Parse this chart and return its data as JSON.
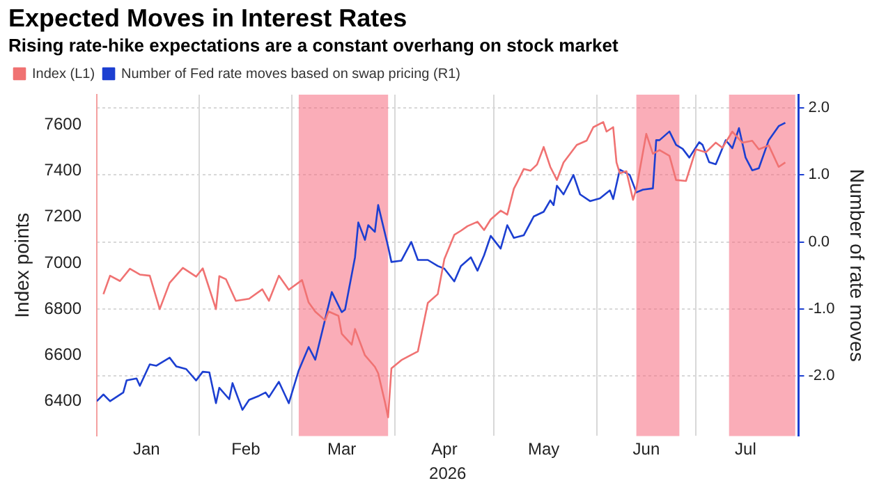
{
  "chart_data": {
    "type": "line",
    "title": "Expected Moves in Interest Rates",
    "subtitle": "Rising rate-hike expectations are a constant overhang on stock market",
    "xlabel": "2026",
    "ylabel": "Index points",
    "y2label": "Number of rate moves",
    "xlim": [
      "2026-01-01",
      "2026-08-01"
    ],
    "xticks": [
      {
        "value": "2026-01-01",
        "label": null
      },
      {
        "value": "2026-01-16",
        "label": "Jan"
      },
      {
        "value": "2026-02-01",
        "label": null
      },
      {
        "value": "2026-02-15",
        "label": "Feb"
      },
      {
        "value": "2026-03-01",
        "label": null
      },
      {
        "value": "2026-03-16",
        "label": "Mar"
      },
      {
        "value": "2026-04-01",
        "label": null
      },
      {
        "value": "2026-04-16",
        "label": "Apr"
      },
      {
        "value": "2026-05-01",
        "label": null
      },
      {
        "value": "2026-05-16",
        "label": "May"
      },
      {
        "value": "2026-06-01",
        "label": null
      },
      {
        "value": "2026-06-16",
        "label": "Jun"
      },
      {
        "value": "2026-07-01",
        "label": null
      },
      {
        "value": "2026-07-16",
        "label": "Jul"
      },
      {
        "value": "2026-08-01",
        "label": null
      }
    ],
    "ylim": [
      6250,
      7730
    ],
    "yticks": [
      6400,
      6600,
      6800,
      7000,
      7200,
      7400,
      7600
    ],
    "y2lim": [
      -2.9,
      2.2
    ],
    "y2ticks": [
      {
        "value": -2,
        "label": "-2.0"
      },
      {
        "value": -1,
        "label": "-1.0"
      },
      {
        "value": 0,
        "label": "0.0"
      },
      {
        "value": 1,
        "label": "1.0"
      },
      {
        "value": 2,
        "label": "2.0"
      }
    ],
    "grid": true,
    "legend": "top left",
    "bands": [
      {
        "axis": "x",
        "from": "2026-03-03",
        "to": "2026-03-30",
        "color": "#f5697e"
      },
      {
        "axis": "x",
        "from": "2026-06-13",
        "to": "2026-06-26",
        "color": "#f5697e"
      },
      {
        "axis": "x",
        "from": "2026-07-11",
        "to": "2026-07-31",
        "color": "#f5697e"
      }
    ],
    "series": [
      {
        "name": "Index (L1)",
        "color": "#f07272",
        "x": [
          "2026-01-03",
          "2026-01-05",
          "2026-01-08",
          "2026-01-11",
          "2026-01-14",
          "2026-01-17",
          "2026-01-20",
          "2026-01-23",
          "2026-01-27",
          "2026-01-31",
          "2026-02-02",
          "2026-02-06",
          "2026-02-07",
          "2026-02-09",
          "2026-02-12",
          "2026-02-16",
          "2026-02-20",
          "2026-02-22",
          "2026-02-25",
          "2026-02-28",
          "2026-03-04",
          "2026-03-06",
          "2026-03-08",
          "2026-03-11",
          "2026-03-12",
          "2026-03-15",
          "2026-03-16",
          "2026-03-19",
          "2026-03-20",
          "2026-03-23",
          "2026-03-26",
          "2026-03-27",
          "2026-03-29",
          "2026-03-30",
          "2026-03-31",
          "2026-04-03",
          "2026-04-08",
          "2026-04-11",
          "2026-04-14",
          "2026-04-16",
          "2026-04-19",
          "2026-04-21",
          "2026-04-23",
          "2026-04-26",
          "2026-04-28",
          "2026-04-30",
          "2026-05-03",
          "2026-05-05",
          "2026-05-07",
          "2026-05-08",
          "2026-05-10",
          "2026-05-12",
          "2026-05-14",
          "2026-05-16",
          "2026-05-18",
          "2026-05-20",
          "2026-05-22",
          "2026-05-26",
          "2026-05-29",
          "2026-05-31",
          "2026-06-03",
          "2026-06-04",
          "2026-06-06",
          "2026-06-07",
          "2026-06-08",
          "2026-06-10",
          "2026-06-12",
          "2026-06-13",
          "2026-06-16",
          "2026-06-18",
          "2026-06-20",
          "2026-06-23",
          "2026-06-25",
          "2026-06-28",
          "2026-07-01",
          "2026-07-04",
          "2026-07-07",
          "2026-07-09",
          "2026-07-12",
          "2026-07-15",
          "2026-07-18",
          "2026-07-20",
          "2026-07-23",
          "2026-07-26",
          "2026-07-28"
        ],
        "values": [
          6865,
          6945,
          6922,
          6975,
          6950,
          6945,
          6800,
          6914,
          6979,
          6941,
          6977,
          6800,
          6943,
          6930,
          6836,
          6845,
          6886,
          6836,
          6945,
          6884,
          6926,
          6829,
          6789,
          6751,
          6790,
          6771,
          6693,
          6646,
          6714,
          6600,
          6550,
          6522,
          6400,
          6331,
          6543,
          6579,
          6617,
          6827,
          6865,
          7017,
          7122,
          7140,
          7160,
          7179,
          7143,
          7189,
          7227,
          7210,
          7322,
          7350,
          7408,
          7400,
          7427,
          7503,
          7417,
          7360,
          7436,
          7512,
          7531,
          7589,
          7611,
          7570,
          7589,
          7436,
          7389,
          7398,
          7274,
          7322,
          7560,
          7474,
          7490,
          7465,
          7360,
          7356,
          7493,
          7480,
          7522,
          7500,
          7570,
          7522,
          7530,
          7493,
          7510,
          7417,
          7436
        ]
      },
      {
        "name": "Number of Fed rate moves based on swap pricing (R1)",
        "color": "#1c3fd1",
        "axis": "y2",
        "x": [
          "2026-01-01",
          "2026-01-03",
          "2026-01-05",
          "2026-01-09",
          "2026-01-10",
          "2026-01-13",
          "2026-01-14",
          "2026-01-17",
          "2026-01-19",
          "2026-01-23",
          "2026-01-25",
          "2026-01-28",
          "2026-01-31",
          "2026-02-02",
          "2026-02-04",
          "2026-02-06",
          "2026-02-07",
          "2026-02-10",
          "2026-02-11",
          "2026-02-14",
          "2026-02-16",
          "2026-02-19",
          "2026-02-21",
          "2026-02-22",
          "2026-02-25",
          "2026-02-28",
          "2026-03-03",
          "2026-03-06",
          "2026-03-08",
          "2026-03-13",
          "2026-03-16",
          "2026-03-17",
          "2026-03-20",
          "2026-03-21",
          "2026-03-23",
          "2026-03-24",
          "2026-03-26",
          "2026-03-27",
          "2026-03-30",
          "2026-03-31",
          "2026-04-03",
          "2026-04-06",
          "2026-04-08",
          "2026-04-11",
          "2026-04-14",
          "2026-04-16",
          "2026-04-19",
          "2026-04-21",
          "2026-04-24",
          "2026-04-26",
          "2026-04-28",
          "2026-04-30",
          "2026-05-03",
          "2026-05-05",
          "2026-05-07",
          "2026-05-10",
          "2026-05-13",
          "2026-05-16",
          "2026-05-18",
          "2026-05-19",
          "2026-05-20",
          "2026-05-22",
          "2026-05-25",
          "2026-05-27",
          "2026-05-30",
          "2026-06-02",
          "2026-06-05",
          "2026-06-06",
          "2026-06-08",
          "2026-06-11",
          "2026-06-13",
          "2026-06-15",
          "2026-06-18",
          "2026-06-19",
          "2026-06-20",
          "2026-06-23",
          "2026-06-25",
          "2026-06-27",
          "2026-06-29",
          "2026-07-02",
          "2026-07-03",
          "2026-07-05",
          "2026-07-07",
          "2026-07-10",
          "2026-07-12",
          "2026-07-14",
          "2026-07-16",
          "2026-07-18",
          "2026-07-20",
          "2026-07-23",
          "2026-07-26",
          "2026-07-28"
        ],
        "values": [
          -2.38,
          -2.28,
          -2.38,
          -2.25,
          -2.07,
          -2.04,
          -2.15,
          -1.83,
          -1.85,
          -1.73,
          -1.86,
          -1.9,
          -2.07,
          -1.94,
          -1.95,
          -2.41,
          -2.18,
          -2.35,
          -2.11,
          -2.51,
          -2.36,
          -2.3,
          -2.25,
          -2.32,
          -2.09,
          -2.41,
          -1.92,
          -1.57,
          -1.76,
          -0.75,
          -1.05,
          -1.01,
          -0.23,
          0.29,
          0.03,
          0.25,
          0.15,
          0.55,
          -0.07,
          -0.3,
          -0.28,
          0.0,
          -0.27,
          -0.27,
          -0.36,
          -0.4,
          -0.59,
          -0.36,
          -0.23,
          -0.43,
          -0.2,
          0.09,
          -0.1,
          0.25,
          0.06,
          0.1,
          0.38,
          0.45,
          0.62,
          0.55,
          0.84,
          0.71,
          1.0,
          0.71,
          0.61,
          0.65,
          0.77,
          0.64,
          1.08,
          1.0,
          0.74,
          0.78,
          0.8,
          1.52,
          1.52,
          1.65,
          1.45,
          1.39,
          1.26,
          1.49,
          1.45,
          1.19,
          1.16,
          1.52,
          1.4,
          1.7,
          1.26,
          1.07,
          1.1,
          1.52,
          1.73,
          1.78
        ]
      }
    ]
  }
}
